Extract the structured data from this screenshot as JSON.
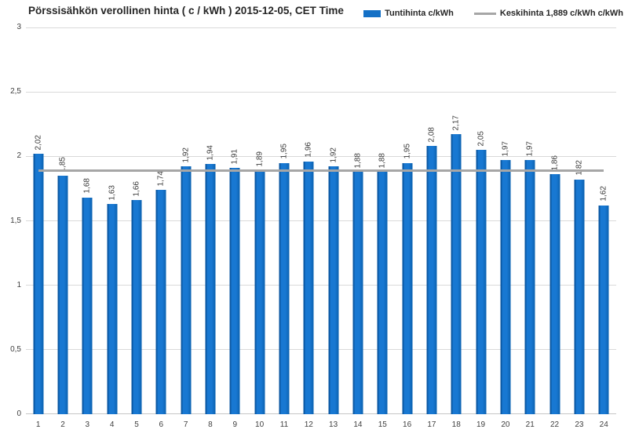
{
  "chart_data": {
    "type": "bar",
    "title": "Pörssisähkön verollinen hinta ( c / kWh ) 2015-12-05, CET Time",
    "xlabel": "",
    "ylabel": "",
    "ylim": [
      0,
      3
    ],
    "grid": true,
    "legend_position": "top-right",
    "categories": [
      1,
      2,
      3,
      4,
      5,
      6,
      7,
      8,
      9,
      10,
      11,
      12,
      13,
      14,
      15,
      16,
      17,
      18,
      19,
      20,
      21,
      22,
      23,
      24
    ],
    "series": [
      {
        "name": "Tuntihinta c/kWh",
        "type": "bar",
        "values": [
          2.02,
          1.85,
          1.68,
          1.63,
          1.66,
          1.74,
          1.92,
          1.94,
          1.91,
          1.89,
          1.95,
          1.96,
          1.92,
          1.88,
          1.88,
          1.95,
          2.08,
          2.17,
          2.05,
          1.97,
          1.97,
          1.86,
          1.82,
          1.62
        ]
      },
      {
        "name": "Keskihinta 1,889 c/kWh c/kWh",
        "type": "line",
        "value": 1.889
      }
    ],
    "value_labels": [
      "2,02",
      "1,85",
      "1,68",
      "1,63",
      "1,66",
      "1,74",
      "1,92",
      "1,94",
      "1,91",
      "1,89",
      "1,95",
      "1,96",
      "1,92",
      "1,88",
      "1,88",
      "1,95",
      "2,08",
      "2,17",
      "2,05",
      "1,97",
      "1,97",
      "1,86",
      "1,82",
      "1,62"
    ],
    "y_ticks": [
      {
        "value": 3,
        "label": "3"
      },
      {
        "value": 2.5,
        "label": "2,5"
      },
      {
        "value": 2,
        "label": "2"
      },
      {
        "value": 1.5,
        "label": "1,5"
      },
      {
        "value": 1,
        "label": "1"
      },
      {
        "value": 0.5,
        "label": "0,5"
      },
      {
        "value": 0,
        "label": "0"
      }
    ]
  },
  "legend": {
    "hourly_label": "Tuntihinta c/kWh",
    "average_label": "Keskihinta 1,889 c/kWh c/kWh"
  },
  "colors": {
    "bar": "#1470C6",
    "bar_edge_left": "#0A57A3",
    "bar_highlight": "#1878D2",
    "bar_edge_right": "#0E66B6",
    "average_line": "#A6A6A6",
    "gridline": "#D9D9D9",
    "axis_line": "#C6C6C6",
    "tick_text": "#404040",
    "title_text": "#262626"
  }
}
